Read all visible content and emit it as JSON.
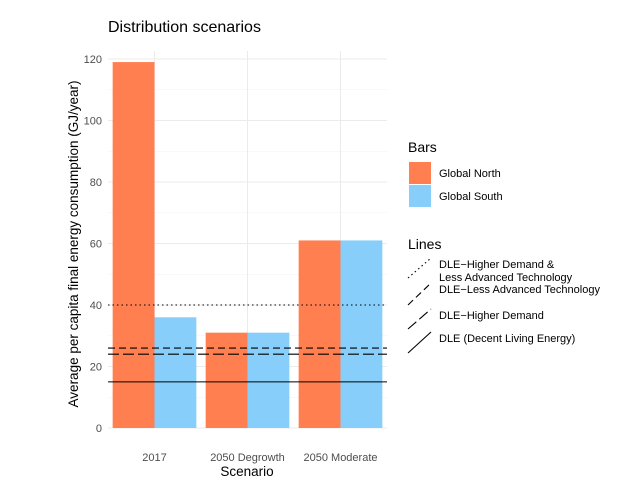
{
  "chart_data": {
    "type": "bar",
    "title": "Distribution scenarios",
    "xlabel": "Scenario",
    "ylabel": "Average per capita final energy consumption (GJ/year)",
    "categories": [
      "2017",
      "2050 Degrowth",
      "2050 Moderate"
    ],
    "series": [
      {
        "name": "Global North",
        "color": "#FF7F50",
        "values": [
          119,
          31,
          61
        ]
      },
      {
        "name": "Global South",
        "color": "#87CEFA",
        "values": [
          36,
          31,
          61
        ]
      }
    ],
    "ylim": [
      0,
      120
    ],
    "yticks": [
      0,
      20,
      40,
      60,
      80,
      100,
      120
    ],
    "grid": true,
    "hlines": [
      {
        "name": "DLE−Higher Demand &\nLess Advanced Technology",
        "label_lines": [
          "DLE−Higher Demand &",
          "Less Advanced Technology"
        ],
        "value": 40,
        "style": "dotted"
      },
      {
        "name": "DLE−Less Advanced Technology",
        "label_lines": [
          "DLE−Less Advanced Technology"
        ],
        "value": 26,
        "style": "dashed"
      },
      {
        "name": "DLE−Higher Demand",
        "label_lines": [
          "DLE−Higher Demand"
        ],
        "value": 24,
        "style": "longdash"
      },
      {
        "name": "DLE (Decent Living Energy)",
        "label_lines": [
          "DLE (Decent Living Energy)"
        ],
        "value": 15,
        "style": "solid"
      }
    ],
    "legend": {
      "placement": "right",
      "bars_title": "Bars",
      "lines_title": "Lines"
    }
  }
}
